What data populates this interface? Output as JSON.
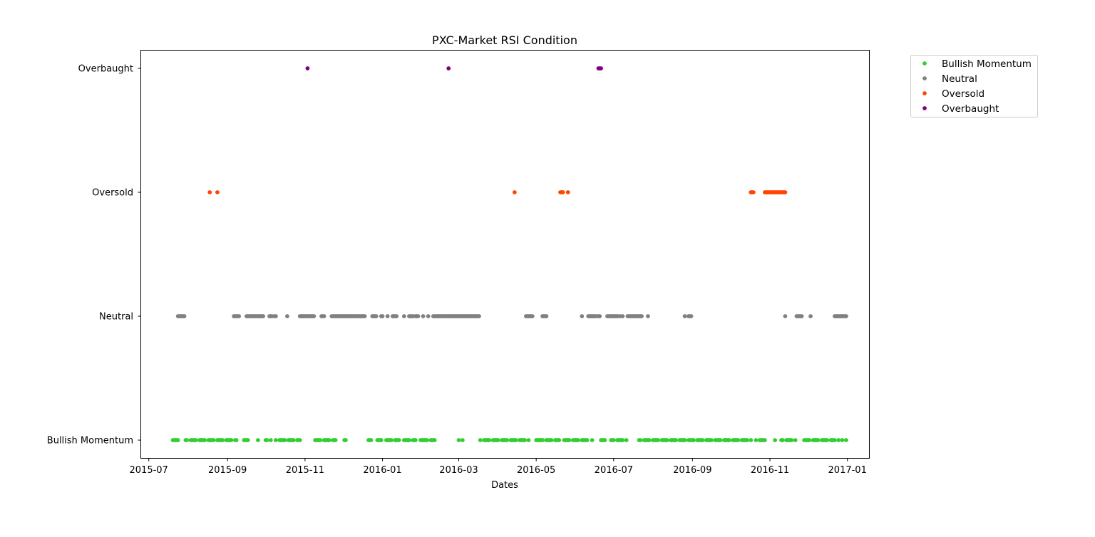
{
  "chart_data": {
    "type": "scatter",
    "title": "PXC-Market RSI Condition",
    "xlabel": "Dates",
    "ylabel": "",
    "x_axis": {
      "type": "date",
      "range": [
        "2015-06-25",
        "2017-01-18"
      ],
      "ticks": [
        "2015-07-01",
        "2015-09-01",
        "2015-11-01",
        "2016-01-01",
        "2016-03-01",
        "2016-05-01",
        "2016-07-01",
        "2016-09-01",
        "2016-11-01",
        "2017-01-01"
      ],
      "tick_labels": [
        "2015-07",
        "2015-09",
        "2015-11",
        "2016-01",
        "2016-03",
        "2016-05",
        "2016-07",
        "2016-09",
        "2016-11",
        "2017-01"
      ]
    },
    "y_axis": {
      "type": "category",
      "categories": [
        "Bullish Momentum",
        "Neutral",
        "Oversold",
        "Overbaught"
      ]
    },
    "grid": false,
    "legend": {
      "placement": "outside-top-right"
    },
    "series": [
      {
        "name": "Bullish Momentum",
        "color": "#32cd32",
        "category": "Bullish Momentum",
        "dates": [
          "2015-07-20",
          "2015-07-21",
          "2015-07-22",
          "2015-07-23",
          "2015-07-24",
          "2015-07-30",
          "2015-07-31",
          "2015-08-03",
          "2015-08-04",
          "2015-08-05",
          "2015-08-06",
          "2015-08-07",
          "2015-08-10",
          "2015-08-11",
          "2015-08-12",
          "2015-08-13",
          "2015-08-14",
          "2015-08-17",
          "2015-08-18",
          "2015-08-19",
          "2015-08-20",
          "2015-08-21",
          "2015-08-24",
          "2015-08-25",
          "2015-08-26",
          "2015-08-27",
          "2015-08-28",
          "2015-08-31",
          "2015-09-01",
          "2015-09-02",
          "2015-09-03",
          "2015-09-04",
          "2015-09-07",
          "2015-09-08",
          "2015-09-14",
          "2015-09-15",
          "2015-09-16",
          "2015-09-17",
          "2015-09-25",
          "2015-10-01",
          "2015-10-02",
          "2015-10-05",
          "2015-10-09",
          "2015-10-12",
          "2015-10-13",
          "2015-10-14",
          "2015-10-15",
          "2015-10-16",
          "2015-10-19",
          "2015-10-20",
          "2015-10-21",
          "2015-10-22",
          "2015-10-23",
          "2015-10-26",
          "2015-10-27",
          "2015-10-28",
          "2015-11-09",
          "2015-11-10",
          "2015-11-11",
          "2015-11-12",
          "2015-11-13",
          "2015-11-16",
          "2015-11-17",
          "2015-11-18",
          "2015-11-19",
          "2015-11-20",
          "2015-11-23",
          "2015-11-24",
          "2015-11-25",
          "2015-12-02",
          "2015-12-03",
          "2015-12-21",
          "2015-12-22",
          "2015-12-23",
          "2015-12-28",
          "2015-12-29",
          "2015-12-30",
          "2015-12-31",
          "2016-01-04",
          "2016-01-05",
          "2016-01-06",
          "2016-01-07",
          "2016-01-08",
          "2016-01-11",
          "2016-01-12",
          "2016-01-13",
          "2016-01-14",
          "2016-01-18",
          "2016-01-19",
          "2016-01-20",
          "2016-01-21",
          "2016-01-22",
          "2016-01-25",
          "2016-01-26",
          "2016-01-27",
          "2016-01-31",
          "2016-02-01",
          "2016-02-02",
          "2016-02-03",
          "2016-02-04",
          "2016-02-05",
          "2016-02-08",
          "2016-02-09",
          "2016-02-10",
          "2016-02-11",
          "2016-03-01",
          "2016-03-04",
          "2016-03-18",
          "2016-03-21",
          "2016-03-22",
          "2016-03-23",
          "2016-03-24",
          "2016-03-25",
          "2016-03-28",
          "2016-03-29",
          "2016-03-30",
          "2016-03-31",
          "2016-04-01",
          "2016-04-04",
          "2016-04-05",
          "2016-04-06",
          "2016-04-07",
          "2016-04-08",
          "2016-04-11",
          "2016-04-12",
          "2016-04-13",
          "2016-04-14",
          "2016-04-15",
          "2016-04-18",
          "2016-04-19",
          "2016-04-20",
          "2016-04-21",
          "2016-04-22",
          "2016-04-25",
          "2016-05-01",
          "2016-05-02",
          "2016-05-03",
          "2016-05-04",
          "2016-05-05",
          "2016-05-06",
          "2016-05-09",
          "2016-05-10",
          "2016-05-11",
          "2016-05-12",
          "2016-05-13",
          "2016-05-16",
          "2016-05-17",
          "2016-05-18",
          "2016-05-19",
          "2016-05-23",
          "2016-05-24",
          "2016-05-25",
          "2016-05-26",
          "2016-05-27",
          "2016-05-30",
          "2016-05-31",
          "2016-06-01",
          "2016-06-02",
          "2016-06-03",
          "2016-06-06",
          "2016-06-07",
          "2016-06-08",
          "2016-06-09",
          "2016-06-10",
          "2016-06-14",
          "2016-06-21",
          "2016-06-22",
          "2016-06-23",
          "2016-06-24",
          "2016-06-29",
          "2016-06-30",
          "2016-07-01",
          "2016-07-04",
          "2016-07-05",
          "2016-07-06",
          "2016-07-07",
          "2016-07-08",
          "2016-07-11",
          "2016-07-21",
          "2016-07-22",
          "2016-07-25",
          "2016-07-26",
          "2016-07-27",
          "2016-07-28",
          "2016-07-29",
          "2016-08-01",
          "2016-08-02",
          "2016-08-03",
          "2016-08-04",
          "2016-08-05",
          "2016-08-08",
          "2016-08-09",
          "2016-08-10",
          "2016-08-11",
          "2016-08-12",
          "2016-08-15",
          "2016-08-16",
          "2016-08-17",
          "2016-08-18",
          "2016-08-19",
          "2016-08-22",
          "2016-08-23",
          "2016-08-24",
          "2016-08-25",
          "2016-08-26",
          "2016-08-29",
          "2016-08-30",
          "2016-08-31",
          "2016-09-01",
          "2016-09-02",
          "2016-09-05",
          "2016-09-06",
          "2016-09-07",
          "2016-09-08",
          "2016-09-09",
          "2016-09-12",
          "2016-09-13",
          "2016-09-14",
          "2016-09-15",
          "2016-09-16",
          "2016-09-19",
          "2016-09-20",
          "2016-09-21",
          "2016-09-22",
          "2016-09-23",
          "2016-09-26",
          "2016-09-27",
          "2016-09-28",
          "2016-09-29",
          "2016-09-30",
          "2016-10-03",
          "2016-10-04",
          "2016-10-05",
          "2016-10-06",
          "2016-10-07",
          "2016-10-10",
          "2016-10-11",
          "2016-10-12",
          "2016-10-13",
          "2016-10-14",
          "2016-10-17",
          "2016-10-21",
          "2016-10-24",
          "2016-10-25",
          "2016-10-26",
          "2016-10-27",
          "2016-10-28",
          "2016-11-05",
          "2016-11-10",
          "2016-11-11",
          "2016-11-14",
          "2016-11-15",
          "2016-11-16",
          "2016-11-17",
          "2016-11-18",
          "2016-11-21",
          "2016-11-28",
          "2016-11-29",
          "2016-11-30",
          "2016-12-01",
          "2016-12-02",
          "2016-12-05",
          "2016-12-06",
          "2016-12-07",
          "2016-12-08",
          "2016-12-09",
          "2016-12-12",
          "2016-12-13",
          "2016-12-14",
          "2016-12-15",
          "2016-12-16",
          "2016-12-19",
          "2016-12-20",
          "2016-12-21",
          "2016-12-22",
          "2016-12-25",
          "2016-12-28",
          "2016-12-31"
        ]
      },
      {
        "name": "Neutral",
        "color": "#808080",
        "category": "Neutral",
        "dates": [
          "2015-07-24",
          "2015-07-25",
          "2015-07-26",
          "2015-07-27",
          "2015-07-28",
          "2015-07-29",
          "2015-09-06",
          "2015-09-07",
          "2015-09-08",
          "2015-09-09",
          "2015-09-10",
          "2015-09-16",
          "2015-09-17",
          "2015-09-18",
          "2015-09-19",
          "2015-09-20",
          "2015-09-21",
          "2015-09-22",
          "2015-09-23",
          "2015-09-24",
          "2015-09-25",
          "2015-09-26",
          "2015-09-27",
          "2015-09-28",
          "2015-09-29",
          "2015-10-04",
          "2015-10-05",
          "2015-10-06",
          "2015-10-08",
          "2015-10-09",
          "2015-10-18",
          "2015-10-28",
          "2015-10-29",
          "2015-10-30",
          "2015-10-31",
          "2015-11-01",
          "2015-11-02",
          "2015-11-03",
          "2015-11-04",
          "2015-11-05",
          "2015-11-06",
          "2015-11-07",
          "2015-11-08",
          "2015-11-14",
          "2015-11-15",
          "2015-11-16",
          "2015-11-22",
          "2015-11-23",
          "2015-11-24",
          "2015-11-25",
          "2015-11-26",
          "2015-11-27",
          "2015-11-28",
          "2015-11-29",
          "2015-11-30",
          "2015-12-01",
          "2015-12-02",
          "2015-12-03",
          "2015-12-04",
          "2015-12-05",
          "2015-12-06",
          "2015-12-07",
          "2015-12-08",
          "2015-12-09",
          "2015-12-10",
          "2015-12-11",
          "2015-12-12",
          "2015-12-13",
          "2015-12-14",
          "2015-12-15",
          "2015-12-16",
          "2015-12-17",
          "2015-12-18",
          "2015-12-24",
          "2015-12-25",
          "2015-12-26",
          "2015-12-27",
          "2015-12-31",
          "2016-01-01",
          "2016-01-05",
          "2016-01-09",
          "2016-01-10",
          "2016-01-11",
          "2016-01-12",
          "2016-01-18",
          "2016-01-22",
          "2016-01-23",
          "2016-01-24",
          "2016-01-25",
          "2016-01-27",
          "2016-01-28",
          "2016-01-29",
          "2016-02-02",
          "2016-02-06",
          "2016-02-10",
          "2016-02-11",
          "2016-02-12",
          "2016-02-13",
          "2016-02-14",
          "2016-02-15",
          "2016-02-16",
          "2016-02-17",
          "2016-02-18",
          "2016-02-19",
          "2016-02-20",
          "2016-02-21",
          "2016-02-22",
          "2016-02-23",
          "2016-02-24",
          "2016-02-25",
          "2016-02-26",
          "2016-02-27",
          "2016-02-28",
          "2016-02-29",
          "2016-03-01",
          "2016-03-02",
          "2016-03-03",
          "2016-03-04",
          "2016-03-05",
          "2016-03-06",
          "2016-03-07",
          "2016-03-08",
          "2016-03-09",
          "2016-03-10",
          "2016-03-11",
          "2016-03-12",
          "2016-03-13",
          "2016-03-14",
          "2016-03-15",
          "2016-03-16",
          "2016-03-17",
          "2016-04-23",
          "2016-04-24",
          "2016-04-25",
          "2016-04-26",
          "2016-04-27",
          "2016-04-28",
          "2016-05-06",
          "2016-05-07",
          "2016-05-08",
          "2016-05-09",
          "2016-06-06",
          "2016-06-11",
          "2016-06-12",
          "2016-06-13",
          "2016-06-14",
          "2016-06-15",
          "2016-06-16",
          "2016-06-17",
          "2016-06-19",
          "2016-06-20",
          "2016-06-26",
          "2016-06-27",
          "2016-06-28",
          "2016-06-29",
          "2016-06-30",
          "2016-07-01",
          "2016-07-02",
          "2016-07-03",
          "2016-07-04",
          "2016-07-06",
          "2016-07-08",
          "2016-07-12",
          "2016-07-13",
          "2016-07-14",
          "2016-07-15",
          "2016-07-16",
          "2016-07-17",
          "2016-07-18",
          "2016-07-19",
          "2016-07-20",
          "2016-07-21",
          "2016-07-22",
          "2016-07-23",
          "2016-07-28",
          "2016-08-26",
          "2016-08-29",
          "2016-08-30",
          "2016-08-31",
          "2016-11-13",
          "2016-11-22",
          "2016-11-23",
          "2016-11-24",
          "2016-11-25",
          "2016-11-26",
          "2016-12-03",
          "2016-12-22",
          "2016-12-23",
          "2016-12-24",
          "2016-12-25",
          "2016-12-26",
          "2016-12-27",
          "2016-12-28",
          "2016-12-29",
          "2016-12-30",
          "2016-12-31"
        ]
      },
      {
        "name": "Oversold",
        "color": "#ff4500",
        "category": "Oversold",
        "dates": [
          "2015-08-18",
          "2015-08-24",
          "2016-04-14",
          "2016-05-20",
          "2016-05-21",
          "2016-05-22",
          "2016-05-26",
          "2016-10-17",
          "2016-10-18",
          "2016-10-19",
          "2016-10-28",
          "2016-10-29",
          "2016-10-30",
          "2016-10-31",
          "2016-11-01",
          "2016-11-02",
          "2016-11-03",
          "2016-11-04",
          "2016-11-05",
          "2016-11-06",
          "2016-11-07",
          "2016-11-08",
          "2016-11-09",
          "2016-11-10",
          "2016-11-11",
          "2016-11-12",
          "2016-11-13"
        ]
      },
      {
        "name": "Overbaught",
        "color": "#800080",
        "category": "Overbaught",
        "dates": [
          "2015-11-03",
          "2016-02-22",
          "2016-06-19",
          "2016-06-20",
          "2016-06-21"
        ]
      }
    ]
  }
}
